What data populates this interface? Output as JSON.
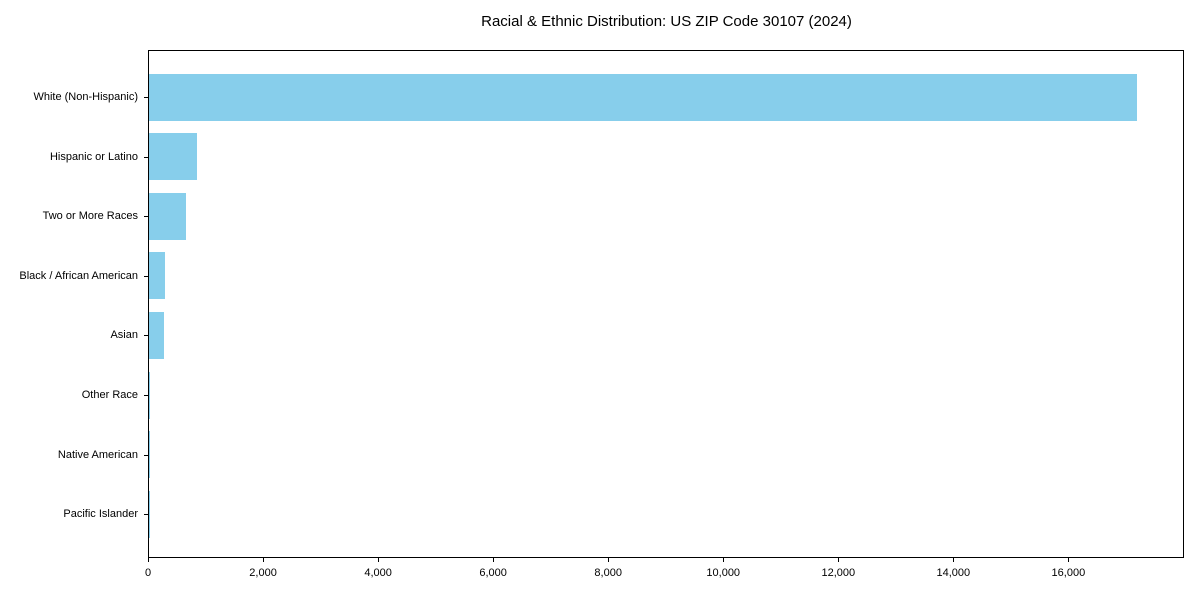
{
  "chart_data": {
    "type": "bar",
    "orientation": "horizontal",
    "title": "Racial & Ethnic Distribution: US ZIP Code 30107 (2024)",
    "categories": [
      "White (Non-Hispanic)",
      "Hispanic or Latino",
      "Two or More Races",
      "Black / African American",
      "Asian",
      "Other Race",
      "Native American",
      "Pacific Islander"
    ],
    "values": [
      17190,
      850,
      655,
      300,
      270,
      25,
      8,
      2
    ],
    "bar_color": "#87CEEB",
    "xlabel": "",
    "ylabel": "",
    "xlim": [
      0,
      18010
    ],
    "x_ticks": [
      0,
      2000,
      4000,
      6000,
      8000,
      10000,
      12000,
      14000,
      16000
    ],
    "x_tick_labels": [
      "0",
      "2,000",
      "4,000",
      "6,000",
      "8,000",
      "10,000",
      "12,000",
      "14,000",
      "16,000"
    ],
    "grid": false,
    "legend": "none",
    "frame": "full-box",
    "text_color": "#000000",
    "background_color": "#ffffff"
  }
}
